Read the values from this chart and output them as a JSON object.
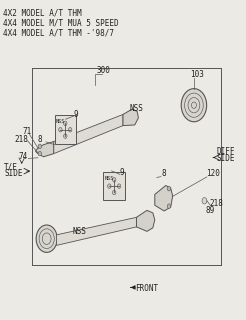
{
  "bg_color": "#eceae4",
  "title_lines": [
    "4X2 MODEL A/T THM",
    "4X4 MODEL M/T MUA 5 SPEED",
    "4X4 MODEL A/T THM -'98/7"
  ],
  "line_color": "#555555",
  "text_color": "#222222",
  "font_size": 5.5,
  "box_face": "#e2ded8",
  "shaft_face": "#dedad4",
  "flange_face": "#d4d0ca",
  "cap_face": "#d8d4ce",
  "joint_face": "#cac6c0"
}
